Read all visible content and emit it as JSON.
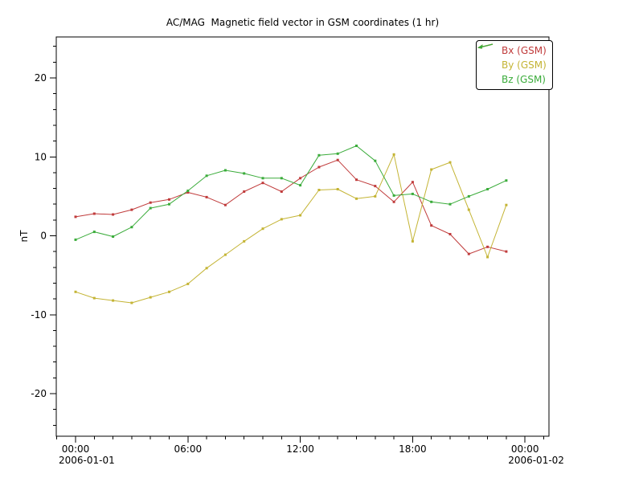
{
  "chart_data": {
    "type": "line",
    "title": "AC/MAG  Magnetic field vector in GSM coordinates (1 hr)",
    "ylabel": "nT",
    "background": "#ffffff",
    "axes_color": "#000000",
    "grid": false,
    "x_times": [
      "00:00",
      "01:00",
      "02:00",
      "03:00",
      "04:00",
      "05:00",
      "06:00",
      "07:00",
      "08:00",
      "09:00",
      "10:00",
      "11:00",
      "12:00",
      "13:00",
      "14:00",
      "15:00",
      "16:00",
      "17:00",
      "18:00",
      "19:00",
      "20:00",
      "21:00",
      "22:00",
      "23:00"
    ],
    "series": [
      {
        "name": "Bx (GSM)",
        "color": "#c03b3b",
        "values": [
          2.4,
          2.8,
          2.7,
          3.3,
          4.2,
          4.6,
          5.5,
          4.9,
          3.9,
          5.6,
          6.7,
          5.6,
          7.3,
          8.7,
          9.6,
          7.1,
          6.3,
          4.3,
          6.8,
          1.3,
          0.2,
          -2.3,
          -1.4,
          -2.0
        ]
      },
      {
        "name": "By (GSM)",
        "color": "#c4b434",
        "values": [
          -7.1,
          -7.9,
          -8.2,
          -8.5,
          -7.8,
          -7.1,
          -6.1,
          -4.1,
          -2.4,
          -0.7,
          0.9,
          2.1,
          2.6,
          5.8,
          5.9,
          4.7,
          5.0,
          10.3,
          -0.7,
          8.4,
          9.3,
          3.3,
          -2.7,
          3.9
        ]
      },
      {
        "name": "Bz (GSM)",
        "color": "#3bac3b",
        "values": [
          -0.5,
          0.5,
          -0.1,
          1.1,
          3.5,
          4.0,
          5.7,
          7.6,
          8.3,
          7.9,
          7.3,
          7.3,
          6.4,
          10.2,
          10.4,
          11.4,
          9.5,
          5.1,
          5.3,
          4.3,
          4.0,
          5.0,
          5.9,
          7.0
        ]
      }
    ],
    "y_axis": {
      "major_ticks": [
        -20,
        -10,
        0,
        10,
        20
      ],
      "minor_step": 2,
      "range": [
        -25.4,
        25.2
      ]
    },
    "x_axis": {
      "major_tick_hours": [
        0,
        6,
        12,
        18,
        24
      ],
      "major_tick_labels": [
        "00:00",
        "06:00",
        "12:00",
        "18:00",
        "00:00"
      ],
      "minor_step_hours": 1,
      "range_hours": [
        -1.03,
        25.3
      ],
      "date_labels": [
        {
          "text": "2006-01-01",
          "anchor_hour": 0
        },
        {
          "text": "2006-01-02",
          "anchor_hour": 24
        }
      ]
    },
    "legend": {
      "position": "upper right"
    }
  }
}
